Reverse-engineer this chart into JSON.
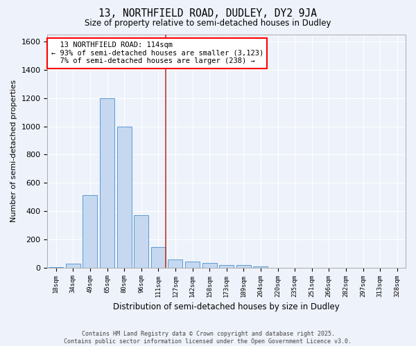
{
  "title": "13, NORTHFIELD ROAD, DUDLEY, DY2 9JA",
  "subtitle": "Size of property relative to semi-detached houses in Dudley",
  "xlabel": "Distribution of semi-detached houses by size in Dudley",
  "ylabel": "Number of semi-detached properties",
  "property_label": "13 NORTHFIELD ROAD: 114sqm",
  "pct_smaller": 93,
  "pct_larger": 7,
  "count_smaller": 3123,
  "count_larger": 238,
  "bin_labels": [
    "18sqm",
    "34sqm",
    "49sqm",
    "65sqm",
    "80sqm",
    "96sqm",
    "111sqm",
    "127sqm",
    "142sqm",
    "158sqm",
    "173sqm",
    "189sqm",
    "204sqm",
    "220sqm",
    "235sqm",
    "251sqm",
    "266sqm",
    "282sqm",
    "297sqm",
    "313sqm",
    "328sqm"
  ],
  "bin_values": [
    5,
    30,
    515,
    1200,
    1000,
    370,
    145,
    55,
    45,
    35,
    20,
    20,
    10,
    0,
    0,
    0,
    0,
    0,
    0,
    0,
    0
  ],
  "bar_color": "#c5d8f0",
  "bar_edge_color": "#5b9bd5",
  "vline_color": "#c0392b",
  "background_color": "#eef2fa",
  "grid_color": "#ffffff",
  "ylim": [
    0,
    1650
  ],
  "yticks": [
    0,
    200,
    400,
    600,
    800,
    1000,
    1200,
    1400,
    1600
  ],
  "footer_line1": "Contains HM Land Registry data © Crown copyright and database right 2025.",
  "footer_line2": "Contains public sector information licensed under the Open Government Licence v3.0."
}
